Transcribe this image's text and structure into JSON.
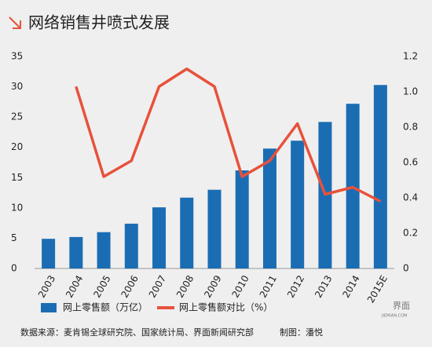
{
  "chart_data": {
    "type": "bar_line",
    "title": "网络销售井喷式发展",
    "categories": [
      "2003",
      "2004",
      "2005",
      "2006",
      "2007",
      "2008",
      "2009",
      "2010",
      "2011",
      "2012",
      "2013",
      "2014",
      "2015E"
    ],
    "series": [
      {
        "name": "网上零售额（万亿）",
        "color": "#1b6db3",
        "type": "bar",
        "values": [
          4.9,
          5.2,
          6.0,
          7.4,
          10.1,
          11.7,
          13.0,
          16.2,
          19.8,
          21.1,
          24.2,
          27.2,
          30.3
        ]
      },
      {
        "name": "网上零售额对比（%）",
        "color": "#e8513b",
        "type": "line",
        "axis": "y2",
        "values": [
          null,
          1.03,
          0.52,
          0.61,
          1.03,
          1.13,
          1.03,
          0.52,
          0.61,
          0.82,
          0.42,
          0.46,
          0.38
        ]
      }
    ],
    "ylim": [
      0,
      35
    ],
    "yticks": [
      0,
      5,
      10,
      15,
      20,
      25,
      30,
      35
    ],
    "y2lim": [
      0,
      1.2
    ],
    "y2ticks": [
      0,
      0.2,
      0.4,
      0.6,
      0.8,
      {
        "value": 1,
        "label": "1.0"
      },
      1.2
    ],
    "source": "数据来源：麦肯锡全球研究院、国家统计局、界面新闻研究部",
    "credit": "制图：潘悦",
    "logo": "界面",
    "logo_sub": "JIEMIAN.COM"
  }
}
